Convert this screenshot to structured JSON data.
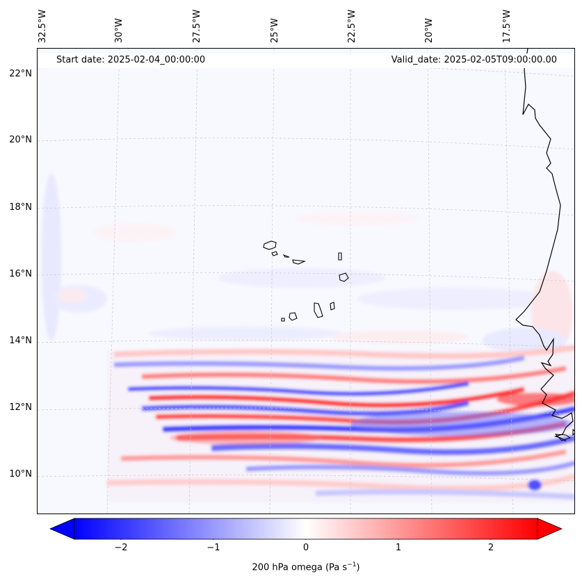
{
  "map": {
    "start_date": "Start date: 2025-02-04_00:00:00",
    "valid_date": "Valid_date: 2025-02-05T09:00:00.00",
    "lon_labels": [
      "32.5°W",
      "30°W",
      "27.5°W",
      "25°W",
      "22.5°W",
      "20°W",
      "17.5°W"
    ],
    "lat_labels": [
      "22°N",
      "20°N",
      "18°N",
      "16°N",
      "14°N",
      "12°N",
      "10°N"
    ],
    "variable": "200 hPa omega",
    "units": "Pa s",
    "units_exponent": "−1",
    "region": "Cabo Verde and West African coast",
    "colormap": "bwr",
    "colors": {
      "negative": "#0000ff",
      "neutral": "#ffffff",
      "positive": "#ff0000",
      "coast": "#000000",
      "grid": "#b0b0b0"
    }
  },
  "colorbar": {
    "min": -2.5,
    "max": 2.5,
    "ticks": [
      -2,
      -1,
      0,
      1,
      2
    ],
    "tick_labels": [
      "−2",
      "−1",
      "0",
      "1",
      "2"
    ],
    "extend": "both"
  }
}
